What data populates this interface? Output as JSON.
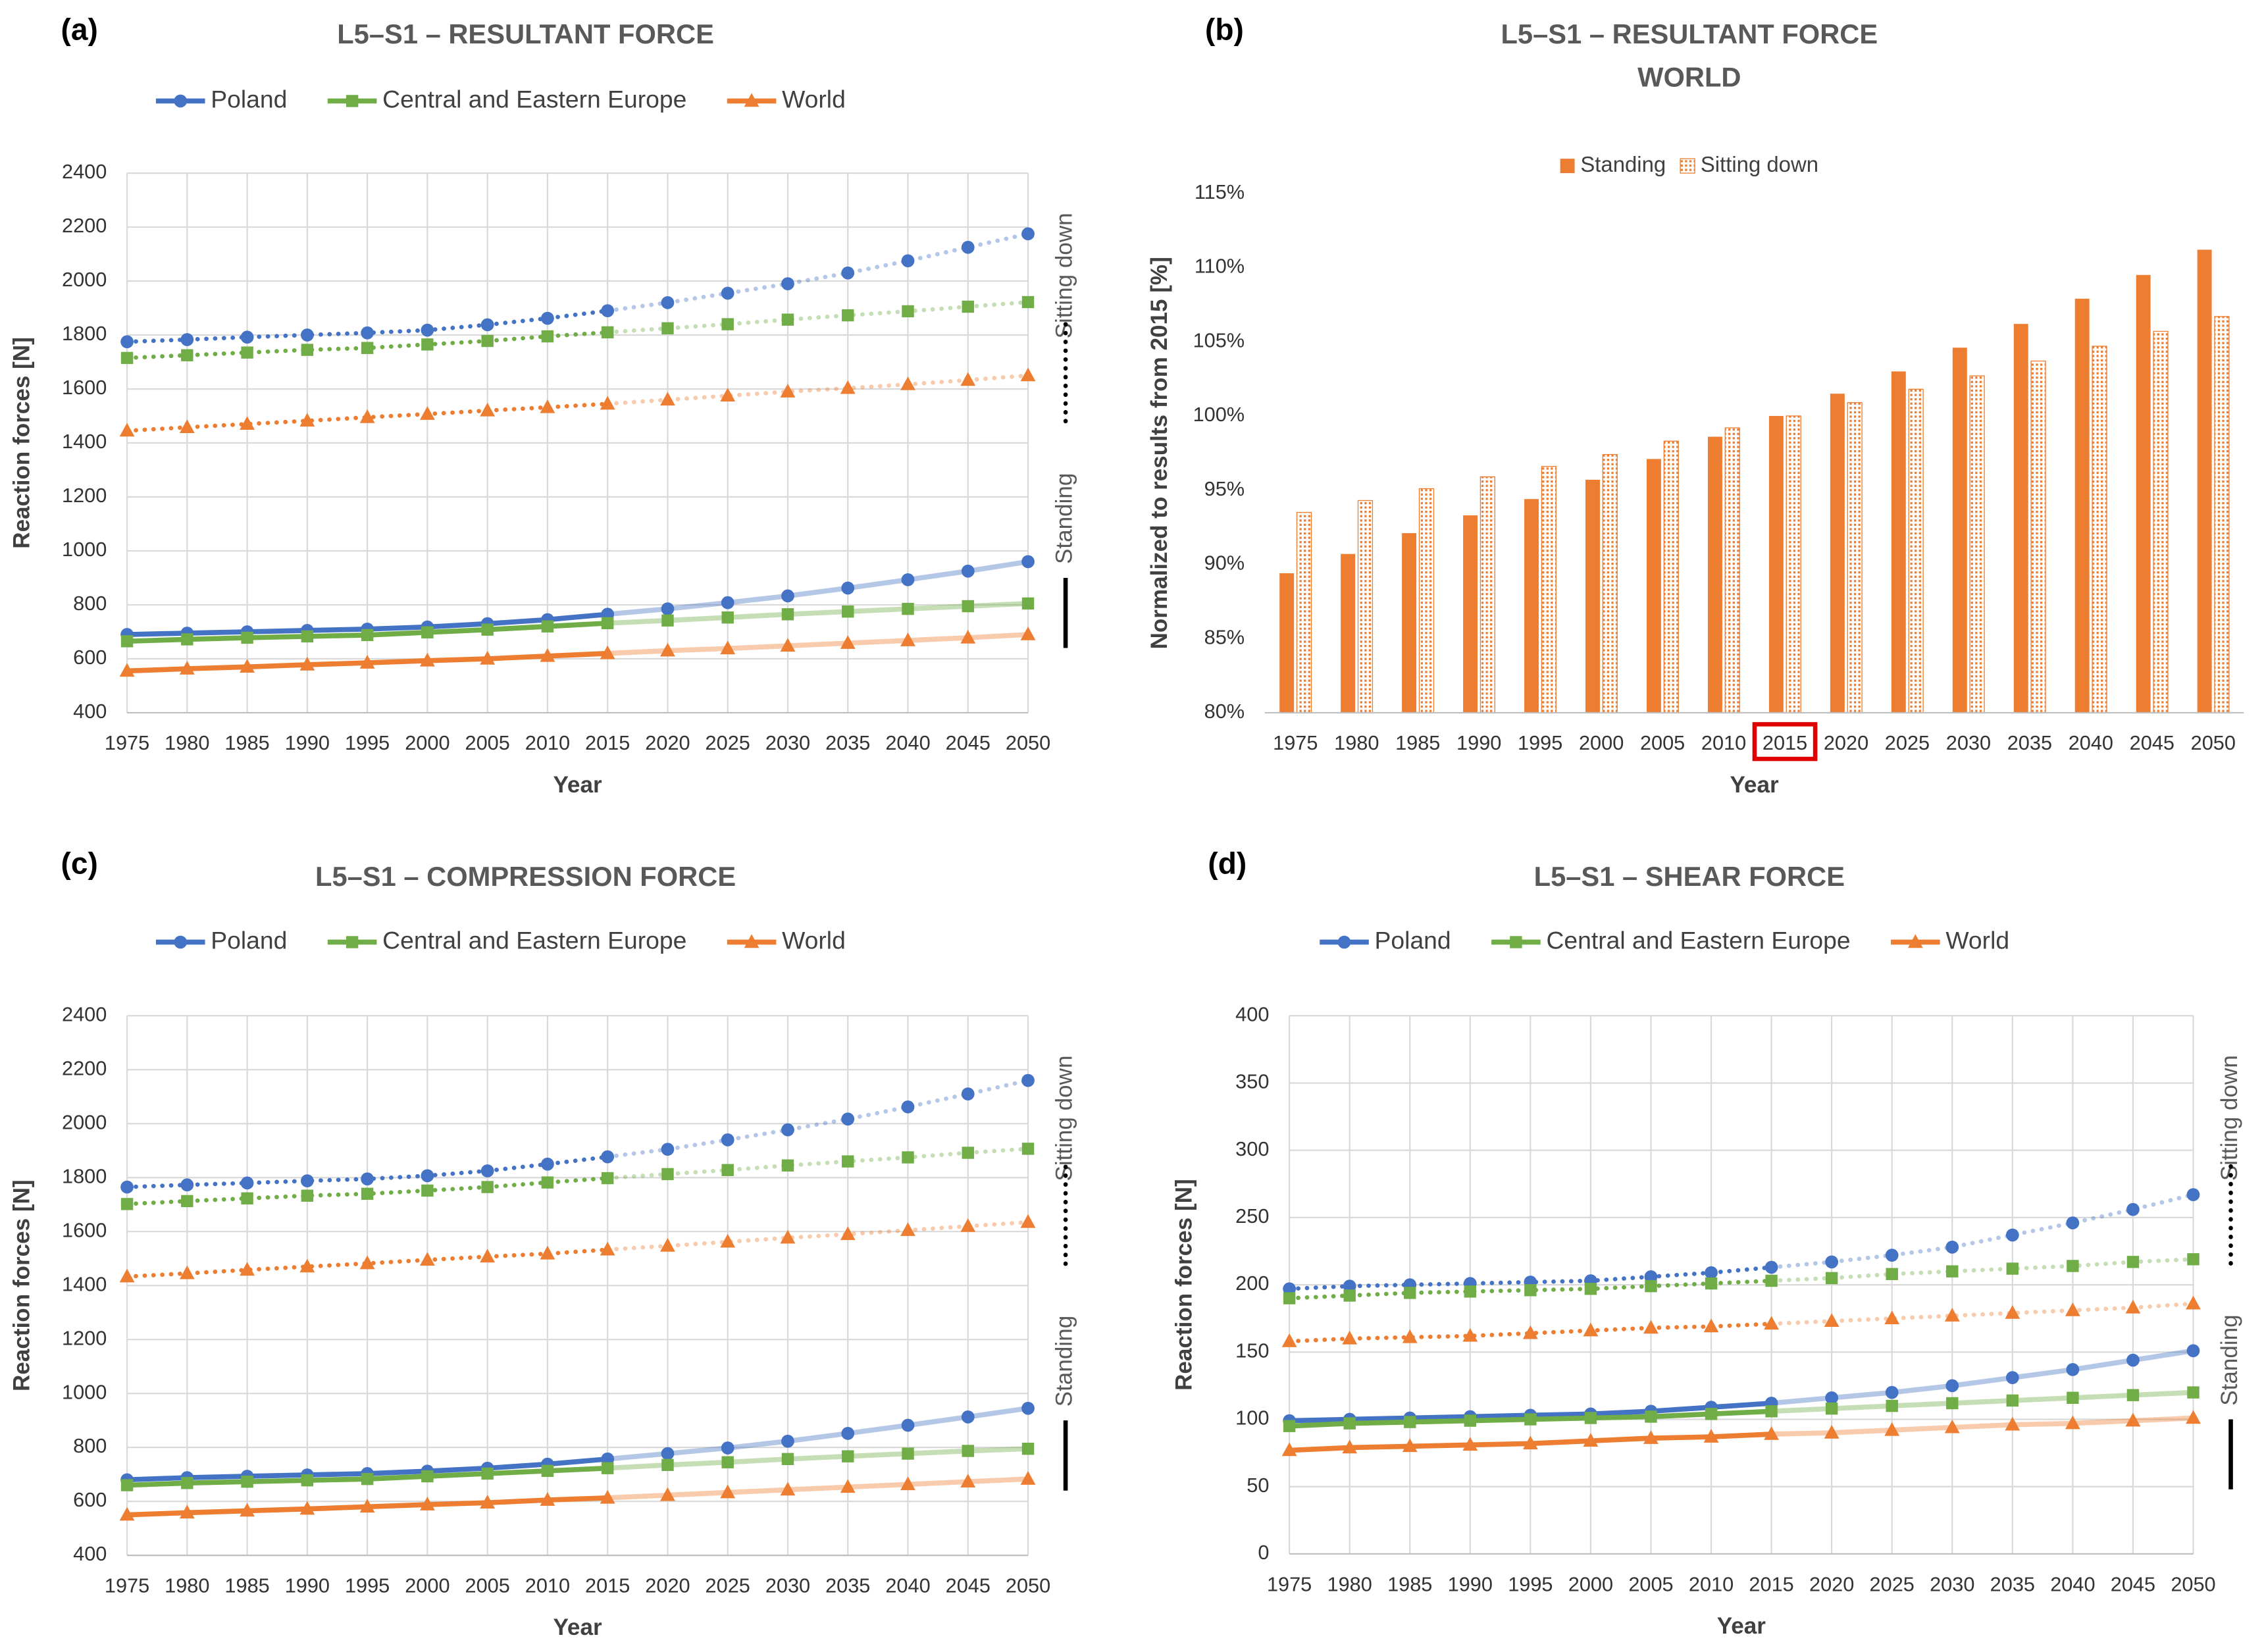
{
  "chart_data": [
    {
      "type": "line",
      "panel": "(a)",
      "title": "L5–S1 – RESULTANT FORCE",
      "x_label": "Year",
      "y_label": "Reaction forces [N]",
      "categories": [
        "1975",
        "1980",
        "1985",
        "1990",
        "1995",
        "2000",
        "2005",
        "2010",
        "2015",
        "2020",
        "2025",
        "2030",
        "2035",
        "2040",
        "2045",
        "2050"
      ],
      "projected_from": "2015",
      "side_labels": {
        "sitting": "Sitting down",
        "standing": "Standing"
      },
      "ylim": [
        400,
        2400
      ],
      "yticks": [
        400,
        600,
        800,
        1000,
        1200,
        1400,
        1600,
        1800,
        2000,
        2200,
        2400
      ],
      "grid": true,
      "series": [
        {
          "name": "Poland",
          "color": "#4472c4",
          "values": [
            690,
            695,
            700,
            705,
            710,
            718,
            730,
            745,
            765,
            785,
            808,
            833,
            862,
            893,
            925,
            960
          ],
          "values_sitting": [
            1775,
            1783,
            1792,
            1800,
            1808,
            1818,
            1838,
            1862,
            1890,
            1920,
            1955,
            1990,
            2030,
            2075,
            2125,
            2175
          ]
        },
        {
          "name": "Central and Eastern Europe",
          "color": "#70ad47",
          "values": [
            665,
            672,
            678,
            683,
            688,
            698,
            708,
            720,
            732,
            742,
            753,
            765,
            775,
            785,
            795,
            805
          ],
          "values_sitting": [
            1715,
            1725,
            1735,
            1745,
            1752,
            1765,
            1778,
            1795,
            1810,
            1825,
            1840,
            1857,
            1873,
            1888,
            1905,
            1922
          ]
        },
        {
          "name": "World",
          "color": "#ed7d31",
          "values": [
            555,
            563,
            570,
            578,
            585,
            593,
            600,
            610,
            620,
            630,
            638,
            648,
            658,
            668,
            678,
            690
          ],
          "values_sitting": [
            1445,
            1458,
            1470,
            1482,
            1495,
            1507,
            1520,
            1532,
            1545,
            1560,
            1575,
            1590,
            1603,
            1617,
            1633,
            1650
          ]
        }
      ]
    },
    {
      "type": "bar",
      "panel": "(b)",
      "title": "L5–S1 – RESULTANT FORCE",
      "subtitle": "WORLD",
      "x_label": "Year",
      "y_label": "Normalized to results from 2015 [%]",
      "categories": [
        "1975",
        "1980",
        "1985",
        "1990",
        "1995",
        "2000",
        "2005",
        "2010",
        "2015",
        "2020",
        "2025",
        "2030",
        "2035",
        "2040",
        "2045",
        "2050"
      ],
      "highlight": "2015",
      "ylim": [
        80,
        115
      ],
      "yticks": [
        {
          "value": 80,
          "label": "80%"
        },
        {
          "value": 85,
          "label": "85%"
        },
        {
          "value": 90,
          "label": "90%"
        },
        {
          "value": 95,
          "label": "95%"
        },
        {
          "value": 100,
          "label": "100%"
        },
        {
          "value": 105,
          "label": "105%"
        },
        {
          "value": 110,
          "label": "110%"
        },
        {
          "value": 115,
          "label": "115%"
        }
      ],
      "series": [
        {
          "name": "Standing",
          "color": "#ed7d31",
          "pattern": "solid",
          "values": [
            89.4,
            90.7,
            92.1,
            93.3,
            94.4,
            95.7,
            97.1,
            98.6,
            100,
            101.5,
            103.0,
            104.6,
            106.2,
            107.9,
            109.5,
            111.2
          ]
        },
        {
          "name": "Sitting down",
          "color": "#ed7d31",
          "pattern": "dotted",
          "values": [
            93.5,
            94.3,
            95.1,
            95.9,
            96.6,
            97.4,
            98.3,
            99.2,
            100,
            100.9,
            101.8,
            102.7,
            103.7,
            104.7,
            105.7,
            106.7
          ]
        }
      ]
    },
    {
      "type": "line",
      "panel": "(c)",
      "title": "L5–S1 – COMPRESSION FORCE",
      "x_label": "Year",
      "y_label": "Reaction forces [N]",
      "categories": [
        "1975",
        "1980",
        "1985",
        "1990",
        "1995",
        "2000",
        "2005",
        "2010",
        "2015",
        "2020",
        "2025",
        "2030",
        "2035",
        "2040",
        "2045",
        "2050"
      ],
      "projected_from": "2015",
      "side_labels": {
        "sitting": "Sitting down",
        "standing": "Standing"
      },
      "ylim": [
        400,
        2400
      ],
      "yticks": [
        400,
        600,
        800,
        1000,
        1200,
        1400,
        1600,
        1800,
        2000,
        2200,
        2400
      ],
      "grid": true,
      "series": [
        {
          "name": "Poland",
          "color": "#4472c4",
          "values": [
            680,
            688,
            693,
            698,
            703,
            712,
            723,
            738,
            757,
            777,
            798,
            823,
            852,
            882,
            913,
            945
          ],
          "values_sitting": [
            1765,
            1773,
            1780,
            1788,
            1795,
            1807,
            1825,
            1850,
            1877,
            1905,
            1940,
            1977,
            2017,
            2062,
            2110,
            2160
          ]
        },
        {
          "name": "Central and Eastern Europe",
          "color": "#70ad47",
          "values": [
            660,
            668,
            673,
            678,
            683,
            693,
            703,
            713,
            723,
            735,
            745,
            757,
            767,
            777,
            787,
            795
          ],
          "values_sitting": [
            1702,
            1713,
            1723,
            1733,
            1740,
            1752,
            1765,
            1782,
            1798,
            1813,
            1828,
            1845,
            1860,
            1875,
            1892,
            1907
          ]
        },
        {
          "name": "World",
          "color": "#ed7d31",
          "values": [
            550,
            558,
            565,
            572,
            580,
            588,
            595,
            605,
            613,
            623,
            633,
            643,
            653,
            663,
            673,
            683
          ],
          "values_sitting": [
            1433,
            1445,
            1458,
            1470,
            1482,
            1495,
            1507,
            1518,
            1533,
            1547,
            1562,
            1577,
            1590,
            1605,
            1620,
            1635
          ]
        }
      ]
    },
    {
      "type": "line",
      "panel": "(d)",
      "title": "L5–S1 – SHEAR FORCE",
      "x_label": "Year",
      "y_label": "Reaction forces [N]",
      "categories": [
        "1975",
        "1980",
        "1985",
        "1990",
        "1995",
        "2000",
        "2005",
        "2010",
        "2015",
        "2020",
        "2025",
        "2030",
        "2035",
        "2040",
        "2045",
        "2050"
      ],
      "projected_from": "2015",
      "side_labels": {
        "sitting": "Sitting down",
        "standing": "Standing"
      },
      "ylim": [
        0,
        400
      ],
      "yticks": [
        0,
        50,
        100,
        150,
        200,
        250,
        300,
        350,
        400
      ],
      "grid": true,
      "series": [
        {
          "name": "Poland",
          "color": "#4472c4",
          "values": [
            99,
            100,
            101,
            102,
            103,
            104,
            106,
            109,
            112,
            116,
            120,
            125,
            131,
            137,
            144,
            151
          ],
          "values_sitting": [
            197,
            199,
            200,
            201,
            202,
            203,
            206,
            209,
            213,
            217,
            222,
            228,
            237,
            246,
            256,
            267
          ]
        },
        {
          "name": "Central and Eastern Europe",
          "color": "#70ad47",
          "values": [
            95,
            97,
            98,
            99,
            100,
            101,
            102,
            104,
            106,
            108,
            110,
            112,
            114,
            116,
            118,
            120
          ],
          "values_sitting": [
            190,
            192,
            194,
            195,
            196,
            197,
            199,
            201,
            203,
            205,
            208,
            210,
            212,
            214,
            217,
            219
          ]
        },
        {
          "name": "World",
          "color": "#ed7d31",
          "values": [
            77,
            79,
            80,
            81,
            82,
            84,
            86,
            87,
            89,
            90,
            92,
            94,
            96,
            97,
            99,
            101
          ],
          "values_sitting": [
            158,
            160,
            161,
            162,
            164,
            166,
            168,
            169,
            171,
            173,
            175,
            177,
            179,
            181,
            183,
            186
          ]
        }
      ]
    }
  ]
}
